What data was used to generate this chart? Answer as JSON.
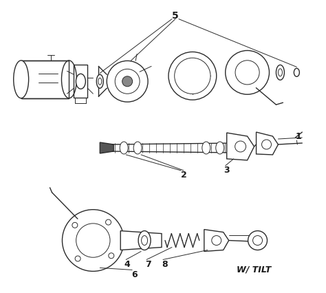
{
  "background_color": "#ffffff",
  "line_color": "#2a2a2a",
  "text_color": "#1a1a1a",
  "figsize": [
    4.74,
    4.26
  ],
  "dpi": 100,
  "wt_text": "W/ TILT",
  "label_fontsize": 8,
  "wt_fontsize": 9
}
